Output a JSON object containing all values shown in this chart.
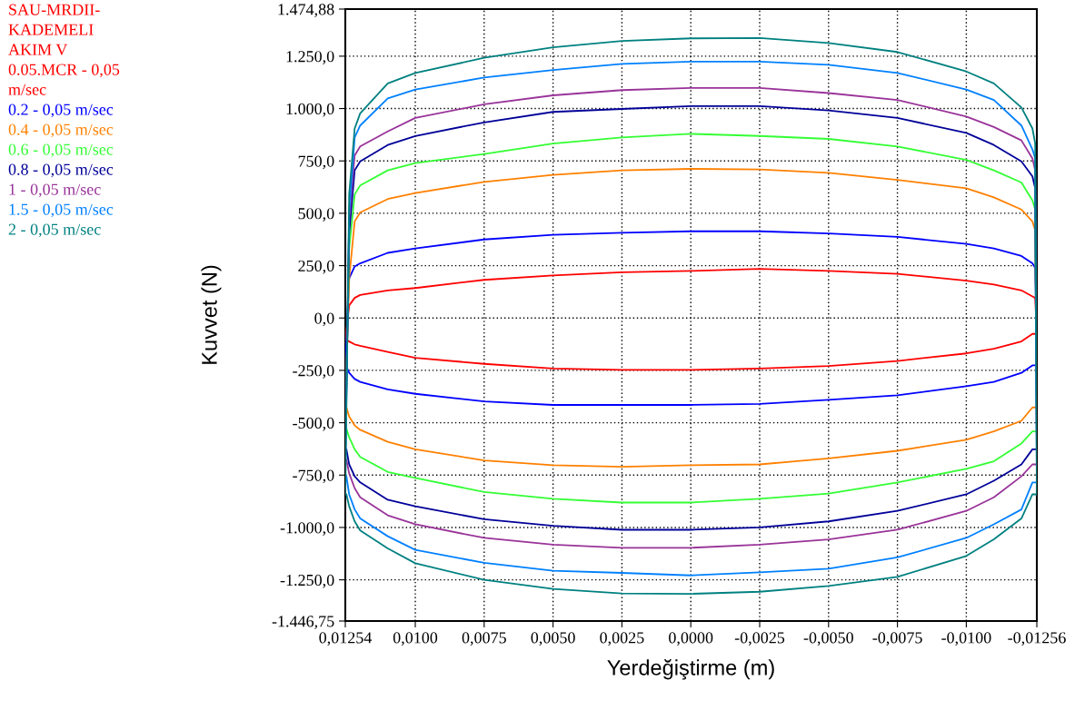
{
  "chart_data": {
    "type": "line",
    "xlabel": "Yerdeğiştirme (m)",
    "ylabel": "Kuvvet (N)",
    "legend_title": "SAU-MRDII-\nKADEMELI\nAKIM V",
    "legend": "left",
    "x": [
      0.01254,
      0.0124,
      0.0122,
      0.012,
      0.011,
      0.01,
      0.0075,
      0.005,
      0.0025,
      0,
      -0.0025,
      -0.005,
      -0.0075,
      -0.01,
      -0.011,
      -0.012,
      -0.0124,
      -0.0125,
      -0.01256,
      -0.0124,
      -0.012,
      -0.011,
      -0.01,
      -0.0075,
      -0.005,
      -0.0025,
      0,
      0.0025,
      0.005,
      0.0075,
      0.01,
      0.011,
      0.012,
      0.0122,
      0.0124,
      0.0125
    ],
    "series": [
      {
        "name": "0.05.MCR - 0,05 m/sec",
        "color": "#ff0000",
        "values": [
          -105,
          60,
          96,
          110,
          132,
          143,
          182,
          203,
          218,
          225,
          235,
          225,
          211,
          178,
          160,
          132,
          103,
          96,
          -76,
          -76,
          -112,
          -147,
          -169,
          -205,
          -229,
          -241,
          -248,
          -248,
          -241,
          -219,
          -190,
          -162,
          -133,
          -126,
          -112,
          -105
        ]
      },
      {
        "name": "0.2 - 0,05 m/sec",
        "color": "#0000ff",
        "values": [
          -233,
          189,
          246,
          261,
          311,
          332,
          375,
          397,
          407,
          414,
          414,
          404,
          387,
          354,
          332,
          296,
          261,
          239,
          -226,
          -226,
          -262,
          -305,
          -326,
          -369,
          -391,
          -410,
          -415,
          -415,
          -415,
          -398,
          -362,
          -341,
          -305,
          -291,
          -262,
          -233
        ]
      },
      {
        "name": "0.4 - 0,05 m/sec",
        "color": "#ff8000",
        "values": [
          -427,
          189,
          461,
          504,
          568,
          597,
          650,
          683,
          705,
          712,
          709,
          693,
          659,
          619,
          576,
          518,
          461,
          418,
          -427,
          -427,
          -491,
          -541,
          -581,
          -634,
          -670,
          -699,
          -703,
          -710,
          -703,
          -680,
          -627,
          -591,
          -534,
          -513,
          -470,
          -427
        ]
      },
      {
        "name": "0.6 - 0,05 m/sec",
        "color": "#33ff33",
        "values": [
          -527,
          332,
          590,
          633,
          705,
          740,
          783,
          833,
          862,
          879,
          869,
          855,
          819,
          755,
          705,
          647,
          561,
          518,
          -541,
          -541,
          -599,
          -684,
          -720,
          -785,
          -838,
          -863,
          -881,
          -881,
          -863,
          -831,
          -763,
          -735,
          -663,
          -627,
          -570,
          -527
        ]
      },
      {
        "name": "0.8 - 0,05 m/sec",
        "color": "#000099",
        "values": [
          -627,
          404,
          705,
          748,
          826,
          869,
          934,
          984,
          998,
          1012,
          1012,
          991,
          955,
          884,
          826,
          748,
          676,
          619,
          -627,
          -627,
          -699,
          -777,
          -842,
          -921,
          -971,
          -1000,
          -1011,
          -1011,
          -992,
          -961,
          -899,
          -868,
          -785,
          -756,
          -699,
          -627
        ]
      },
      {
        "name": "1 - 0,05 m/sec",
        "color": "#993399",
        "values": [
          -677,
          475,
          776,
          819,
          891,
          955,
          1020,
          1063,
          1088,
          1098,
          1098,
          1074,
          1041,
          962,
          912,
          848,
          762,
          705,
          -699,
          -699,
          -756,
          -856,
          -921,
          -1011,
          -1057,
          -1082,
          -1097,
          -1097,
          -1082,
          -1050,
          -985,
          -942,
          -856,
          -813,
          -742,
          -677
        ]
      },
      {
        "name": "1.5 - 0,05 m/sec",
        "color": "#0080ff",
        "values": [
          -756,
          504,
          862,
          919,
          1048,
          1091,
          1148,
          1184,
          1213,
          1224,
          1224,
          1209,
          1170,
          1091,
          1041,
          919,
          805,
          762,
          -785,
          -785,
          -914,
          -985,
          -1050,
          -1143,
          -1197,
          -1214,
          -1229,
          -1217,
          -1207,
          -1169,
          -1107,
          -1042,
          -957,
          -914,
          -842,
          -756
        ]
      },
      {
        "name": "2 - 0,05 m/sec",
        "color": "#008080",
        "values": [
          -842,
          590,
          905,
          977,
          1120,
          1170,
          1242,
          1292,
          1323,
          1335,
          1337,
          1313,
          1270,
          1177,
          1120,
          1005,
          905,
          833,
          -842,
          -842,
          -957,
          -1057,
          -1136,
          -1236,
          -1279,
          -1307,
          -1317,
          -1315,
          -1293,
          -1250,
          -1171,
          -1100,
          -1014,
          -971,
          -899,
          -842
        ]
      }
    ],
    "xlim": [
      0.01254,
      -0.01256
    ],
    "xticks": [
      {
        "value": 0.01254,
        "label": "0,01254"
      },
      {
        "value": 0.01,
        "label": "0,0100"
      },
      {
        "value": 0.0075,
        "label": "0,0075"
      },
      {
        "value": 0.005,
        "label": "0,0050"
      },
      {
        "value": 0.0025,
        "label": "0,0025"
      },
      {
        "value": 0,
        "label": "0,0000"
      },
      {
        "value": -0.0025,
        "label": "-0,0025"
      },
      {
        "value": -0.005,
        "label": "-0,0050"
      },
      {
        "value": -0.0075,
        "label": "-0,0075"
      },
      {
        "value": -0.01,
        "label": "-0,0100"
      },
      {
        "value": -0.01256,
        "label": "-0,01256"
      }
    ],
    "ylim": [
      -1446.75,
      1474.88
    ],
    "yticks": [
      {
        "value": -1446.75,
        "label": "-1.446,75"
      },
      {
        "value": -1250,
        "label": "-1.250,0"
      },
      {
        "value": -1000,
        "label": "-1.000,0"
      },
      {
        "value": -750,
        "label": "-750,0"
      },
      {
        "value": -500,
        "label": "-500,0"
      },
      {
        "value": -250,
        "label": "-250,0"
      },
      {
        "value": 0,
        "label": "0,0"
      },
      {
        "value": 250,
        "label": "250,0"
      },
      {
        "value": 500,
        "label": "500,0"
      },
      {
        "value": 750,
        "label": "750,0"
      },
      {
        "value": 1000,
        "label": "1.000,0"
      },
      {
        "value": 1250,
        "label": "1.250,0"
      },
      {
        "value": 1474.88,
        "label": "1.474,88"
      }
    ],
    "grid": true,
    "line_style": "solid",
    "marker": "none"
  }
}
